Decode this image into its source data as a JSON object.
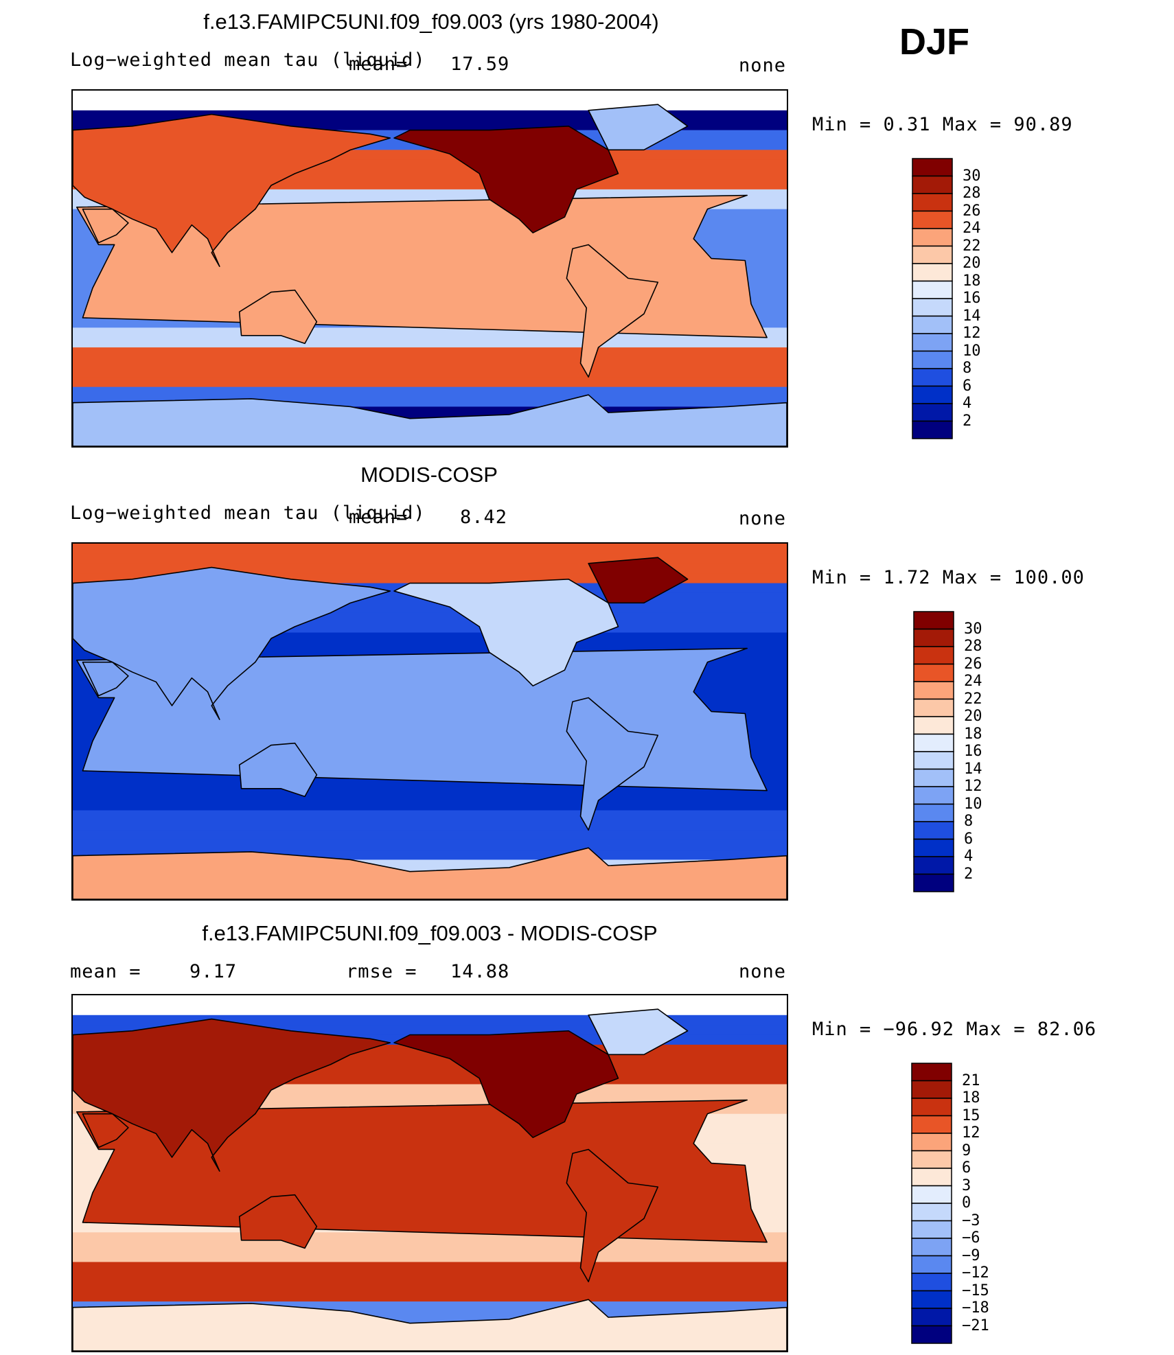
{
  "season": "DJF",
  "panels": [
    {
      "title": "f.e13.FAMIPC5UNI.f09_f09.003 (yrs 1980-2004)",
      "left_label": "Log−weighted mean tau (liquid)",
      "mean_label": "mean=",
      "mean_value": "17.59",
      "units": "none",
      "minmax": "Min =    0.31 Max =   90.89",
      "levels": [
        "30",
        "28",
        "26",
        "24",
        "22",
        "20",
        "18",
        "16",
        "14",
        "12",
        "10",
        "8",
        "6",
        "4",
        "2"
      ],
      "pattern": "model"
    },
    {
      "title": "MODIS-COSP",
      "left_label": "Log−weighted mean tau (liquid)",
      "mean_label": "mean=",
      "mean_value": "8.42",
      "units": "none",
      "minmax": "Min =    1.72 Max =  100.00",
      "levels": [
        "30",
        "28",
        "26",
        "24",
        "22",
        "20",
        "18",
        "16",
        "14",
        "12",
        "10",
        "8",
        "6",
        "4",
        "2"
      ],
      "pattern": "obs"
    },
    {
      "title": "f.e13.FAMIPC5UNI.f09_f09.003 - MODIS-COSP",
      "left_label": "mean =",
      "mean_value": "9.17",
      "rmse_label": "rmse =",
      "rmse_value": "14.88",
      "units": "none",
      "minmax": "Min = −96.92 Max =   82.06",
      "levels": [
        "21",
        "18",
        "15",
        "12",
        "9",
        "6",
        "3",
        "0",
        "−3",
        "−6",
        "−9",
        "−12",
        "−15",
        "−18",
        "−21"
      ],
      "pattern": "diff"
    }
  ],
  "colors": {
    "palette": [
      "#00007f",
      "#0018a8",
      "#0030c8",
      "#1f4fe0",
      "#3a6bea",
      "#5a88f0",
      "#7da3f4",
      "#a2c0f8",
      "#c5d9fb",
      "#e3edfd",
      "#fde8d8",
      "#fcc8a8",
      "#fba47a",
      "#f57d4f",
      "#e85527",
      "#c93210",
      "#a31a07",
      "#800000"
    ]
  },
  "chart_data": [
    {
      "type": "heatmap",
      "title": "f.e13.FAMIPC5UNI.f09_f09.003 (yrs 1980-2004)",
      "variable": "Log−weighted mean tau (liquid)",
      "units": "none",
      "mean": 17.59,
      "min": 0.31,
      "max": 90.89,
      "contour_levels": [
        2,
        4,
        6,
        8,
        10,
        12,
        14,
        16,
        18,
        20,
        22,
        24,
        26,
        28,
        30
      ]
    },
    {
      "type": "heatmap",
      "title": "MODIS-COSP",
      "variable": "Log−weighted mean tau (liquid)",
      "units": "none",
      "mean": 8.42,
      "min": 1.72,
      "max": 100.0,
      "contour_levels": [
        2,
        4,
        6,
        8,
        10,
        12,
        14,
        16,
        18,
        20,
        22,
        24,
        26,
        28,
        30
      ]
    },
    {
      "type": "heatmap",
      "title": "f.e13.FAMIPC5UNI.f09_f09.003 - MODIS-COSP",
      "units": "none",
      "mean": 9.17,
      "rmse": 14.88,
      "min": -96.92,
      "max": 82.06,
      "contour_levels": [
        -21,
        -18,
        -15,
        -12,
        -9,
        -6,
        -3,
        0,
        3,
        6,
        9,
        12,
        15,
        18,
        21
      ]
    }
  ]
}
